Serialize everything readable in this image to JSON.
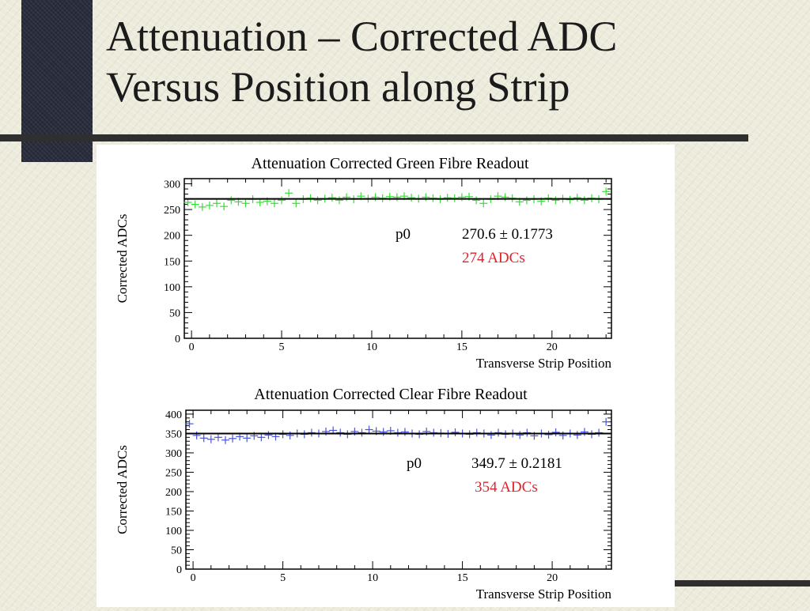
{
  "slide": {
    "title_line1": "Attenuation – Corrected ADC",
    "title_line2": "Versus Position along Strip"
  },
  "colors": {
    "green_series": "#33e033",
    "blue_series": "#4a55d8",
    "fit_line": "#000000",
    "annotation_red": "#e0222a"
  },
  "chart_data": [
    {
      "type": "scatter",
      "title": "Attenuation Corrected Green Fibre Readout",
      "xlabel": "Transverse Strip Position",
      "ylabel": "Corrected ADCs",
      "xlim": [
        -0.4,
        23.3
      ],
      "ylim": [
        0,
        310
      ],
      "xticks": [
        0,
        5,
        10,
        15,
        20
      ],
      "yticks": [
        0,
        50,
        100,
        150,
        200,
        250,
        300
      ],
      "series": [
        {
          "color": "#33e033",
          "marker": "+",
          "x": [
            -0.2,
            0.2,
            0.6,
            1.0,
            1.4,
            1.8,
            2.2,
            2.6,
            3.0,
            3.4,
            3.8,
            4.2,
            4.6,
            5.0,
            5.4,
            5.8,
            6.2,
            6.6,
            7.0,
            7.4,
            7.8,
            8.2,
            8.6,
            9.0,
            9.4,
            9.8,
            10.2,
            10.6,
            11.0,
            11.4,
            11.8,
            12.2,
            12.6,
            13.0,
            13.4,
            13.8,
            14.2,
            14.6,
            15.0,
            15.4,
            15.8,
            16.2,
            16.6,
            17.0,
            17.4,
            17.8,
            18.2,
            18.6,
            19.0,
            19.4,
            19.8,
            20.2,
            20.6,
            21.0,
            21.4,
            21.8,
            22.2,
            22.6,
            23.0
          ],
          "y": [
            264,
            260,
            255,
            258,
            262,
            256,
            268,
            265,
            262,
            270,
            264,
            266,
            262,
            268,
            282,
            262,
            270,
            272,
            268,
            271,
            273,
            268,
            274,
            270,
            276,
            271,
            274,
            272,
            275,
            274,
            276,
            273,
            271,
            274,
            272,
            270,
            273,
            272,
            274,
            275,
            268,
            262,
            270,
            276,
            274,
            272,
            265,
            268,
            270,
            266,
            272,
            268,
            271,
            269,
            273,
            268,
            272,
            270,
            285
          ]
        }
      ],
      "fit": {
        "value": 270.6,
        "label": "p0",
        "result": "270.6 ± 0.1773",
        "annotation": "274 ADCs"
      }
    },
    {
      "type": "scatter",
      "title": "Attenuation Corrected Clear Fibre Readout",
      "xlabel": "Transverse Strip Position",
      "ylabel": "Corrected ADCs",
      "xlim": [
        -0.4,
        23.3
      ],
      "ylim": [
        0,
        410
      ],
      "xticks": [
        0,
        5,
        10,
        15,
        20
      ],
      "yticks": [
        0,
        50,
        100,
        150,
        200,
        250,
        300,
        350,
        400
      ],
      "series": [
        {
          "color": "#4a55d8",
          "marker": "+",
          "x": [
            -0.2,
            0.2,
            0.6,
            1.0,
            1.4,
            1.8,
            2.2,
            2.6,
            3.0,
            3.4,
            3.8,
            4.2,
            4.6,
            5.0,
            5.4,
            5.8,
            6.2,
            6.6,
            7.0,
            7.4,
            7.8,
            8.2,
            8.6,
            9.0,
            9.4,
            9.8,
            10.2,
            10.6,
            11.0,
            11.4,
            11.8,
            12.2,
            12.6,
            13.0,
            13.4,
            13.8,
            14.2,
            14.6,
            15.0,
            15.4,
            15.8,
            16.2,
            16.6,
            17.0,
            17.4,
            17.8,
            18.2,
            18.6,
            19.0,
            19.4,
            19.8,
            20.2,
            20.6,
            21.0,
            21.4,
            21.8,
            22.2,
            22.6,
            23.0
          ],
          "y": [
            375,
            345,
            338,
            335,
            340,
            333,
            337,
            342,
            338,
            344,
            340,
            346,
            342,
            348,
            345,
            350,
            348,
            352,
            350,
            355,
            358,
            352,
            348,
            355,
            352,
            360,
            356,
            354,
            357,
            352,
            354,
            350,
            348,
            355,
            352,
            351,
            349,
            353,
            350,
            348,
            352,
            350,
            346,
            352,
            348,
            350,
            346,
            352,
            344,
            350,
            347,
            353,
            345,
            350,
            346,
            354,
            348,
            352,
            380
          ]
        }
      ],
      "fit": {
        "value": 349.7,
        "label": "p0",
        "result": "349.7 ± 0.2181",
        "annotation": "354 ADCs"
      }
    }
  ]
}
